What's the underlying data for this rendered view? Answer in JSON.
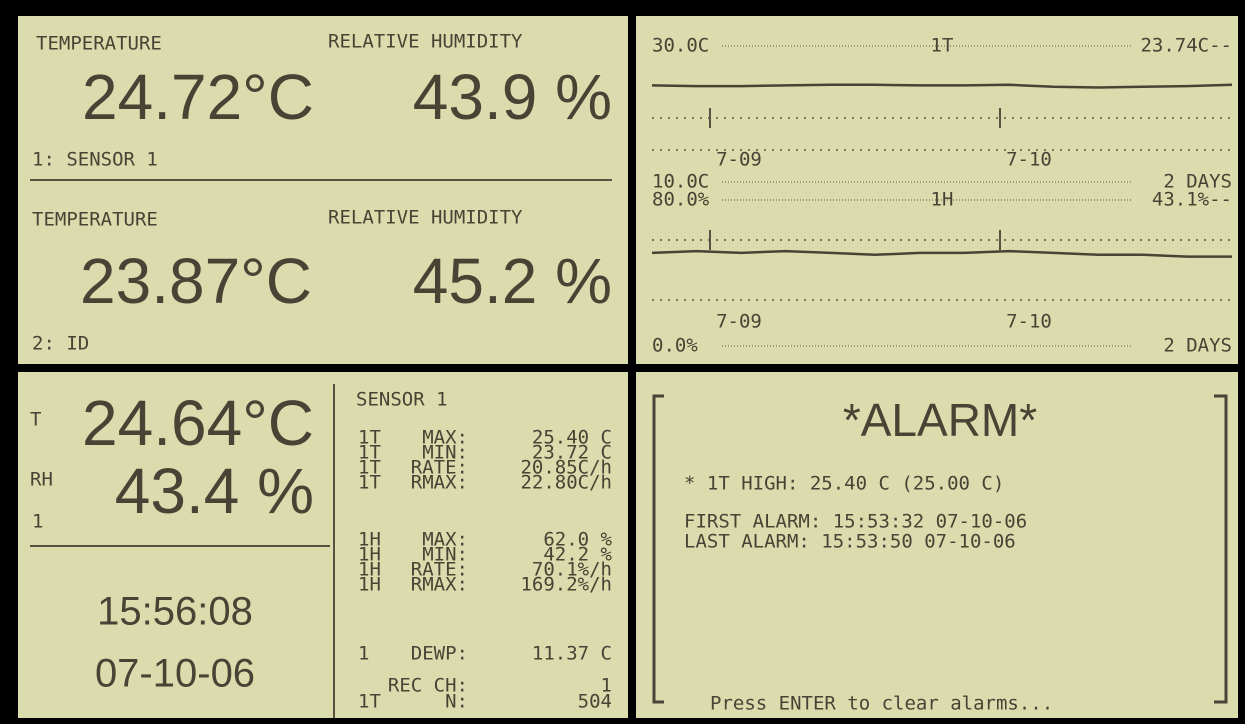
{
  "status_panel": {
    "channels": [
      {
        "temp_label": "TEMPERATURE",
        "rh_label": "RELATIVE HUMIDITY",
        "temp": "24.72°C",
        "rh": "43.9 %",
        "sensor": "1: SENSOR 1"
      },
      {
        "temp_label": "TEMPERATURE",
        "rh_label": "RELATIVE HUMIDITY",
        "temp": "23.87°C",
        "rh": "45.2 %",
        "sensor": "2: ID"
      }
    ]
  },
  "graph_panel": {
    "graphs": [
      {
        "channel": "1T",
        "current": "23.74C--",
        "span": "2 DAYS",
        "x_labels": [
          "7-09",
          "7-10"
        ],
        "ylim": [
          10,
          30
        ],
        "yticks": [
          {
            "value": 30,
            "label": "30.0C"
          },
          {
            "value": 10,
            "label": "10.0C"
          }
        ],
        "values": [
          24.2,
          24.1,
          24.1,
          24.2,
          24.3,
          24.3,
          24.2,
          24.2,
          24.3,
          24.0,
          23.9,
          24.0,
          24.1,
          24.3
        ]
      },
      {
        "channel": "1H",
        "current": "43.1%--",
        "span": "2 DAYS",
        "x_labels": [
          "7-09",
          "7-10"
        ],
        "ylim": [
          0,
          80
        ],
        "yticks": [
          {
            "value": 80,
            "label": "80.0%"
          },
          {
            "value": 0,
            "label": "0.0%"
          }
        ],
        "values": [
          51,
          52,
          51,
          52,
          51,
          50,
          51,
          51,
          52,
          51,
          50,
          50,
          49,
          49
        ]
      }
    ]
  },
  "detail_panel": {
    "t_label": "T",
    "temp": "24.64°C",
    "rh_label": "RH",
    "rh": "43.4 %",
    "channel": "1",
    "time": "15:56:08",
    "date": "07-10-06",
    "stats_title": "SENSOR 1",
    "temp_stats": [
      [
        "1T",
        "MAX:",
        "25.40 C"
      ],
      [
        "1T",
        "MIN:",
        "23.72 C"
      ],
      [
        "1T",
        "RATE:",
        "20.85C/h"
      ],
      [
        "1T",
        "RMAX:",
        "22.80C/h"
      ]
    ],
    "rh_stats": [
      [
        "1H",
        "MAX:",
        "62.0 %"
      ],
      [
        "1H",
        "MIN:",
        "42.2 %"
      ],
      [
        "1H",
        "RATE:",
        "70.1%/h"
      ],
      [
        "1H",
        "RMAX:",
        "169.2%/h"
      ]
    ],
    "dewp": [
      "1",
      "DEWP:",
      "11.37 C"
    ],
    "rec": [
      [
        "",
        "REC CH:",
        "1"
      ],
      [
        "1T",
        "N:",
        "504"
      ]
    ]
  },
  "alarm_panel": {
    "title": "*ALARM*",
    "alarm_line": "* 1T HIGH: 25.40 C (25.00 C)",
    "first_alarm": "FIRST ALARM: 15:53:32 07-10-06",
    "last_alarm": "LAST ALARM: 15:53:50 07-10-06",
    "footer": "Press ENTER to clear alarms..."
  }
}
